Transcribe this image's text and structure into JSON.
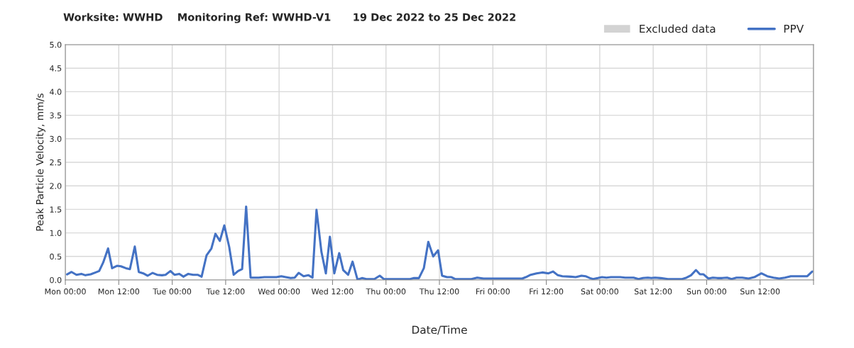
{
  "chart_data": {
    "type": "line",
    "title": "Worksite: WWHD    Monitoring Ref: WWHD-V1      19 Dec 2022 to 25 Dec 2022",
    "xlabel": "Date/Time",
    "ylabel": "Peak Particle Velocity, mm/s",
    "series": [
      {
        "name": "Excluded data",
        "type": "area",
        "color": "#d3d3d3"
      },
      {
        "name": "PPV",
        "color": "#4472c4",
        "x": [
          "2022-12-19T00:24",
          "2022-12-19T01:24",
          "2022-12-19T02:30",
          "2022-12-19T03:36",
          "2022-12-19T04:30",
          "2022-12-19T05:42",
          "2022-12-19T06:48",
          "2022-12-19T07:36",
          "2022-12-19T08:30",
          "2022-12-19T09:36",
          "2022-12-19T10:30",
          "2022-12-19T11:36",
          "2022-12-19T12:30",
          "2022-12-19T13:36",
          "2022-12-19T14:30",
          "2022-12-19T15:36",
          "2022-12-19T16:30",
          "2022-12-19T17:30",
          "2022-12-19T18:30",
          "2022-12-19T19:36",
          "2022-12-19T20:36",
          "2022-12-19T21:42",
          "2022-12-19T22:30",
          "2022-12-19T23:36",
          "2022-12-20T00:30",
          "2022-12-20T01:36",
          "2022-12-20T02:30",
          "2022-12-20T03:36",
          "2022-12-20T04:42",
          "2022-12-20T05:42",
          "2022-12-20T06:36",
          "2022-12-20T07:42",
          "2022-12-20T08:48",
          "2022-12-20T09:42",
          "2022-12-20T10:42",
          "2022-12-20T11:42",
          "2022-12-20T12:48",
          "2022-12-20T13:48",
          "2022-12-20T14:48",
          "2022-12-20T15:42",
          "2022-12-20T16:36",
          "2022-12-20T17:36",
          "2022-12-20T19:24",
          "2022-12-20T20:42",
          "2022-12-20T22:06",
          "2022-12-20T23:24",
          "2022-12-21T00:30",
          "2022-12-21T01:30",
          "2022-12-21T02:36",
          "2022-12-21T03:30",
          "2022-12-21T04:24",
          "2022-12-21T05:30",
          "2022-12-21T06:36",
          "2022-12-21T07:30",
          "2022-12-21T08:24",
          "2022-12-21T09:30",
          "2022-12-21T10:30",
          "2022-12-21T11:24",
          "2022-12-21T12:24",
          "2022-12-21T13:30",
          "2022-12-21T14:24",
          "2022-12-21T15:30",
          "2022-12-21T16:30",
          "2022-12-21T17:36",
          "2022-12-21T18:36",
          "2022-12-21T19:36",
          "2022-12-21T21:24",
          "2022-12-21T22:36",
          "2022-12-21T23:30",
          "2022-12-22T01:06",
          "2022-12-22T03:12",
          "2022-12-22T05:24",
          "2022-12-22T06:18",
          "2022-12-22T07:24",
          "2022-12-22T08:30",
          "2022-12-22T09:30",
          "2022-12-22T10:36",
          "2022-12-22T11:42",
          "2022-12-22T12:36",
          "2022-12-22T13:42",
          "2022-12-22T14:42",
          "2022-12-22T15:30",
          "2022-12-22T17:36",
          "2022-12-22T19:12",
          "2022-12-22T20:30",
          "2022-12-22T21:54",
          "2022-12-23T01:00",
          "2022-12-23T04:12",
          "2022-12-23T06:36",
          "2022-12-23T07:24",
          "2022-12-23T08:30",
          "2022-12-23T09:48",
          "2022-12-23T11:06",
          "2022-12-23T12:30",
          "2022-12-23T13:30",
          "2022-12-23T14:36",
          "2022-12-23T15:36",
          "2022-12-23T17:30",
          "2022-12-23T18:36",
          "2022-12-23T19:54",
          "2022-12-23T20:48",
          "2022-12-23T21:48",
          "2022-12-23T22:30",
          "2022-12-23T23:36",
          "2022-12-24T00:30",
          "2022-12-24T01:30",
          "2022-12-24T02:30",
          "2022-12-24T03:36",
          "2022-12-24T04:36",
          "2022-12-24T05:42",
          "2022-12-24T06:48",
          "2022-12-24T07:36",
          "2022-12-24T08:42",
          "2022-12-24T09:42",
          "2022-12-24T10:48",
          "2022-12-24T11:36",
          "2022-12-24T12:24",
          "2022-12-24T13:42",
          "2022-12-24T15:18",
          "2022-12-24T16:54",
          "2022-12-24T18:30",
          "2022-12-24T19:30",
          "2022-12-24T20:30",
          "2022-12-24T21:36",
          "2022-12-24T22:30",
          "2022-12-24T23:18",
          "2022-12-25T00:24",
          "2022-12-25T01:24",
          "2022-12-25T02:24",
          "2022-12-25T03:30",
          "2022-12-25T04:36",
          "2022-12-25T05:36",
          "2022-12-25T06:42",
          "2022-12-25T08:00",
          "2022-12-25T09:24",
          "2022-12-25T10:42",
          "2022-12-25T12:18",
          "2022-12-25T13:36",
          "2022-12-25T15:00",
          "2022-12-25T16:18",
          "2022-12-25T17:36",
          "2022-12-25T18:54",
          "2022-12-25T19:42",
          "2022-12-25T21:06",
          "2022-12-25T22:36",
          "2022-12-25T23:42"
        ],
        "values": [
          0.12,
          0.17,
          0.11,
          0.13,
          0.1,
          0.12,
          0.16,
          0.19,
          0.37,
          0.67,
          0.25,
          0.3,
          0.29,
          0.25,
          0.23,
          0.71,
          0.17,
          0.14,
          0.09,
          0.15,
          0.11,
          0.1,
          0.11,
          0.19,
          0.11,
          0.13,
          0.07,
          0.13,
          0.11,
          0.11,
          0.07,
          0.52,
          0.67,
          0.98,
          0.83,
          1.16,
          0.7,
          0.11,
          0.19,
          0.23,
          1.56,
          0.05,
          0.05,
          0.06,
          0.06,
          0.06,
          0.08,
          0.06,
          0.04,
          0.05,
          0.15,
          0.08,
          0.1,
          0.05,
          1.49,
          0.6,
          0.14,
          0.92,
          0.14,
          0.57,
          0.21,
          0.11,
          0.39,
          0.01,
          0.04,
          0.02,
          0.02,
          0.09,
          0.02,
          0.02,
          0.02,
          0.02,
          0.04,
          0.04,
          0.25,
          0.81,
          0.5,
          0.63,
          0.09,
          0.06,
          0.06,
          0.02,
          0.02,
          0.02,
          0.05,
          0.03,
          0.03,
          0.03,
          0.03,
          0.06,
          0.11,
          0.14,
          0.16,
          0.14,
          0.18,
          0.1,
          0.08,
          0.07,
          0.06,
          0.09,
          0.08,
          0.04,
          0.02,
          0.04,
          0.06,
          0.05,
          0.06,
          0.06,
          0.06,
          0.05,
          0.05,
          0.05,
          0.02,
          0.04,
          0.05,
          0.04,
          0.05,
          0.04,
          0.02,
          0.02,
          0.02,
          0.05,
          0.1,
          0.21,
          0.12,
          0.12,
          0.03,
          0.05,
          0.04,
          0.04,
          0.05,
          0.02,
          0.05,
          0.05,
          0.03,
          0.06,
          0.14,
          0.08,
          0.05,
          0.03,
          0.05,
          0.08,
          0.08,
          0.08,
          0.08,
          0.18
        ]
      }
    ],
    "xlim": [
      "2022-12-19T00:00",
      "2022-12-26T00:00"
    ],
    "xticks": [
      {
        "value": "2022-12-19T00:00",
        "label": "Mon 00:00"
      },
      {
        "value": "2022-12-19T12:00",
        "label": "Mon 12:00"
      },
      {
        "value": "2022-12-20T00:00",
        "label": "Tue 00:00"
      },
      {
        "value": "2022-12-20T12:00",
        "label": "Tue 12:00"
      },
      {
        "value": "2022-12-21T00:00",
        "label": "Wed 00:00"
      },
      {
        "value": "2022-12-21T12:00",
        "label": "Wed 12:00"
      },
      {
        "value": "2022-12-22T00:00",
        "label": "Thu 00:00"
      },
      {
        "value": "2022-12-22T12:00",
        "label": "Thu 12:00"
      },
      {
        "value": "2022-12-23T00:00",
        "label": "Fri 00:00"
      },
      {
        "value": "2022-12-23T12:00",
        "label": "Fri 12:00"
      },
      {
        "value": "2022-12-24T00:00",
        "label": "Sat 00:00"
      },
      {
        "value": "2022-12-24T12:00",
        "label": "Sat 12:00"
      },
      {
        "value": "2022-12-25T00:00",
        "label": "Sun 00:00"
      },
      {
        "value": "2022-12-25T12:00",
        "label": "Sun 12:00"
      },
      {
        "value": "2022-12-26T00:00",
        "label": null
      }
    ],
    "ylim": [
      0,
      5
    ],
    "yticks": [
      {
        "value": 0,
        "label": "0.0"
      },
      {
        "value": 0.5,
        "label": "0.5"
      },
      {
        "value": 1,
        "label": "1.0"
      },
      {
        "value": 1.5,
        "label": "1.5"
      },
      {
        "value": 2,
        "label": "2.0"
      },
      {
        "value": 2.5,
        "label": "2.5"
      },
      {
        "value": 3,
        "label": "3.0"
      },
      {
        "value": 3.5,
        "label": "3.5"
      },
      {
        "value": 4,
        "label": "4.0"
      },
      {
        "value": 4.5,
        "label": "4.5"
      },
      {
        "value": 5,
        "label": "5.0"
      }
    ],
    "grid": true,
    "legend": "top right",
    "marker": "none",
    "line_style": "solid"
  }
}
